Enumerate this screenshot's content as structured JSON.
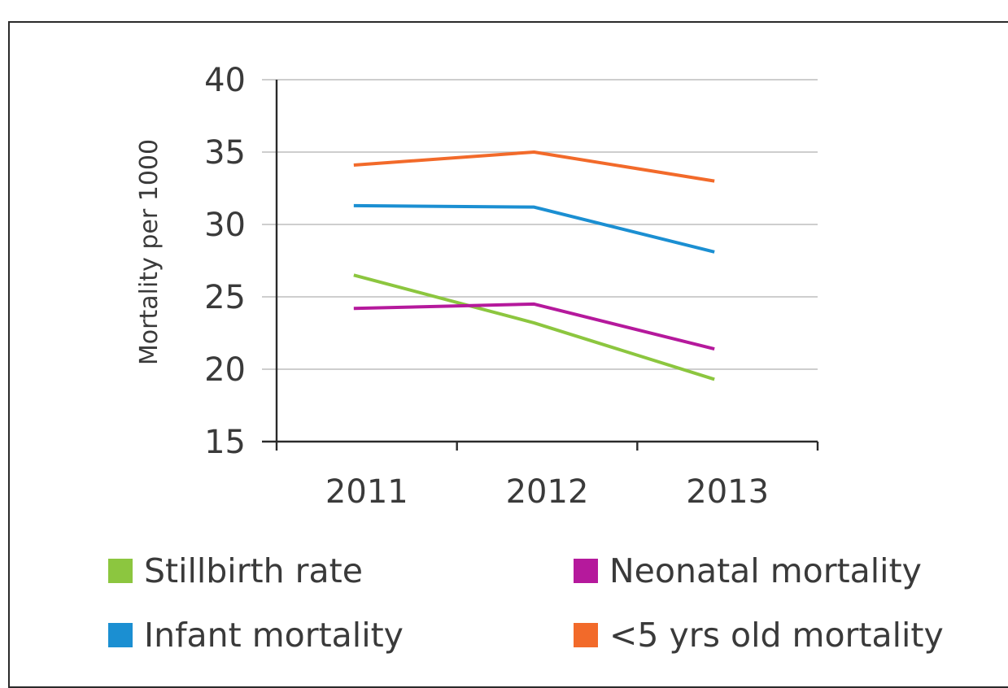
{
  "chart_data": {
    "type": "line",
    "title": "",
    "xlabel": "",
    "ylabel": "Mortality per 1000",
    "categories": [
      "2011",
      "2012",
      "2013"
    ],
    "ylim": [
      15,
      40
    ],
    "yticks": [
      "15",
      "20",
      "25",
      "30",
      "35",
      "40"
    ],
    "grid": true,
    "legend_position": "bottom",
    "series": [
      {
        "name": "Stillbirth rate",
        "color": "#8cc63f",
        "values": [
          26.5,
          23.2,
          19.3
        ]
      },
      {
        "name": "Neonatal mortality",
        "color": "#b5199c",
        "values": [
          24.2,
          24.5,
          21.4
        ]
      },
      {
        "name": "Infant mortality",
        "color": "#1b8fd2",
        "values": [
          31.3,
          31.2,
          28.1
        ]
      },
      {
        "name": "<5 yrs old mortality",
        "color": "#f26a2a",
        "values": [
          34.1,
          35.0,
          33.0
        ]
      }
    ]
  }
}
